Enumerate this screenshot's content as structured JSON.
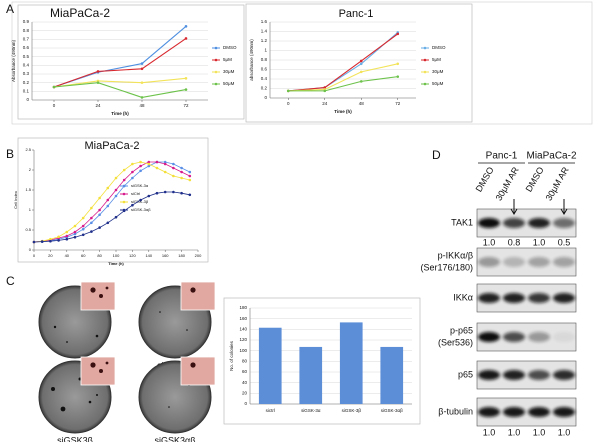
{
  "panel_labels": [
    "A",
    "B",
    "C",
    "D"
  ],
  "chart_data": [
    {
      "type": "line",
      "title": "MiaPaCa-2",
      "x_label": "Time (h)",
      "y_label": "Absorbance (490nm)",
      "x": [
        0,
        24,
        48,
        72
      ],
      "xlim": [
        -12,
        84
      ],
      "xticks": [
        0,
        24,
        48,
        72
      ],
      "ylim": [
        0,
        0.9
      ],
      "yticks": [
        0,
        0.1,
        0.2,
        0.3,
        0.4,
        0.5,
        0.6,
        0.7,
        0.8,
        0.9
      ],
      "grid": true,
      "legend": "right",
      "markers": true,
      "series": [
        {
          "name": "DMSO",
          "color": "#4f8fe0",
          "values": [
            0.15,
            0.32,
            0.42,
            0.85
          ]
        },
        {
          "name": "5μM",
          "color": "#d8282e",
          "values": [
            0.15,
            0.33,
            0.36,
            0.71
          ]
        },
        {
          "name": "30μM",
          "color": "#f2e35a",
          "values": [
            0.15,
            0.22,
            0.2,
            0.25
          ]
        },
        {
          "name": "50μM",
          "color": "#6cc24a",
          "values": [
            0.15,
            0.2,
            0.03,
            0.12
          ]
        }
      ]
    },
    {
      "type": "line",
      "title": "Panc-1",
      "x_label": "Time (h)",
      "y_label": "absorbance (490nm)",
      "x": [
        0,
        24,
        48,
        72
      ],
      "xlim": [
        -12,
        84
      ],
      "xticks": [
        0,
        24,
        48,
        72
      ],
      "ylim": [
        0,
        1.6
      ],
      "yticks": [
        0,
        0.2,
        0.4,
        0.6,
        0.8,
        1,
        1.2,
        1.4,
        1.6
      ],
      "grid": true,
      "legend": "right",
      "markers": true,
      "series": [
        {
          "name": "DMSO",
          "color": "#6aaee6",
          "values": [
            0.15,
            0.22,
            0.72,
            1.38
          ]
        },
        {
          "name": "5μM",
          "color": "#d8282e",
          "values": [
            0.15,
            0.22,
            0.78,
            1.35
          ]
        },
        {
          "name": "30μM",
          "color": "#f2e35a",
          "values": [
            0.15,
            0.18,
            0.55,
            0.72
          ]
        },
        {
          "name": "50μM",
          "color": "#6cc24a",
          "values": [
            0.15,
            0.15,
            0.35,
            0.45
          ]
        }
      ]
    },
    {
      "type": "line",
      "title": "MiaPaCa-2",
      "x_label": "Time (h)",
      "y_label": "Cell Index",
      "x": [
        0,
        10,
        20,
        30,
        40,
        50,
        60,
        70,
        80,
        90,
        100,
        110,
        120,
        130,
        140,
        150,
        160,
        170,
        180,
        190
      ],
      "xlim": [
        0,
        200
      ],
      "xticks": [
        0,
        20,
        40,
        60,
        80,
        100,
        120,
        140,
        160,
        180,
        200
      ],
      "ylim": [
        0,
        2.5
      ],
      "yticks": [
        0,
        0.5,
        1,
        1.5,
        2,
        2.5
      ],
      "grid": false,
      "legend": "center",
      "markers": true,
      "series": [
        {
          "name": "siGSK-3α",
          "color": "#5a8fe6",
          "values": [
            0.2,
            0.21,
            0.23,
            0.27,
            0.32,
            0.4,
            0.52,
            0.68,
            0.88,
            1.1,
            1.35,
            1.6,
            1.8,
            1.98,
            2.1,
            2.2,
            2.2,
            2.15,
            2.05,
            1.95
          ]
        },
        {
          "name": "siCtrl",
          "color": "#d81b8c",
          "values": [
            0.2,
            0.22,
            0.25,
            0.3,
            0.35,
            0.45,
            0.6,
            0.8,
            1,
            1.25,
            1.5,
            1.75,
            1.95,
            2.1,
            2.2,
            2.2,
            2.15,
            2.05,
            1.95,
            1.85
          ]
        },
        {
          "name": "siGSK-3β",
          "color": "#f4e03a",
          "values": [
            0.2,
            0.22,
            0.27,
            0.33,
            0.45,
            0.6,
            0.8,
            1.05,
            1.3,
            1.55,
            1.8,
            2,
            2.15,
            2.2,
            2.15,
            2.05,
            1.95,
            1.85,
            1.8,
            1.75
          ]
        },
        {
          "name": "siGSK-3αβ",
          "color": "#1f2f8a",
          "values": [
            0.2,
            0.21,
            0.22,
            0.24,
            0.27,
            0.32,
            0.38,
            0.46,
            0.56,
            0.68,
            0.82,
            0.98,
            1.12,
            1.25,
            1.35,
            1.42,
            1.45,
            1.45,
            1.42,
            1.38
          ]
        }
      ]
    },
    {
      "type": "bar",
      "y_label": "No. of colonies",
      "categories": [
        "sictrl",
        "siGSK-3α",
        "siGSK-3β",
        "siGSK-3αβ"
      ],
      "values": [
        143,
        107,
        153,
        107
      ],
      "color": "#5b8ed6",
      "ylim": [
        0,
        180
      ],
      "yticks": [
        0,
        20,
        40,
        60,
        80,
        100,
        120,
        140,
        160,
        180
      ],
      "grid": true
    }
  ],
  "colonies": {
    "labels": [
      "siCtrl",
      "siGSK3α",
      "siGSK3β",
      "siGSK3αβ"
    ]
  },
  "blot": {
    "groups": [
      "Panc-1",
      "MiaPaCa-2"
    ],
    "lanes": [
      "DMSO",
      "30μM AR",
      "DMSO",
      "30μM AR"
    ],
    "rows": [
      {
        "label": "TAK1"
      },
      {
        "label": "p-IKKα/β",
        "sublabel": "(Ser176/180)"
      },
      {
        "label": "IKKα"
      },
      {
        "label": "p-p65",
        "sublabel": "(Ser536)"
      },
      {
        "label": "p65"
      },
      {
        "label": "β-tubulin"
      }
    ],
    "tak1_ratios": [
      "1.0",
      "0.8",
      "1.0",
      "0.5"
    ],
    "tubulin_ratios": [
      "1.0",
      "1.0",
      "1.0",
      "1.0"
    ]
  }
}
